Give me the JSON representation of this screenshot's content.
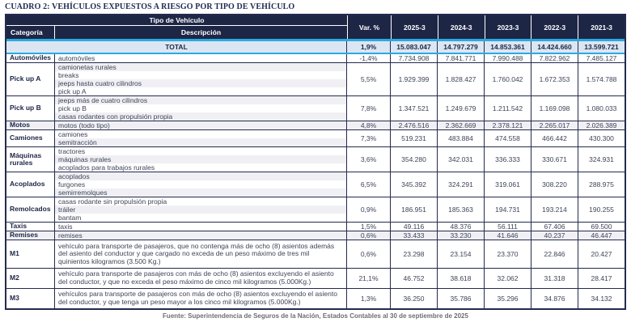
{
  "title": "CUADRO 2: VEHÍCULOS EXPUESTOS A RIESGO POR TIPO DE VEHÍCULO",
  "footer": "Fuente: Superintendencia de Seguros de la Nación, Estados Contables al 30 de septiembre de 2025",
  "colors": {
    "header_bg": "#1e2646",
    "border_navy": "#232b4d",
    "accent_cyan": "#29abe2",
    "total_row_bg": "#dce6f2",
    "stripe_gray": "#f0f0f4",
    "body_text": "#3f4457",
    "title_text": "#1e2a52",
    "footer_text": "#6d6e71"
  },
  "table": {
    "group_header": "Tipo de Vehículo",
    "col_headers": [
      "Categoría",
      "Descripción",
      "Var. %",
      "2025-3",
      "2024-3",
      "2023-3",
      "2022-3",
      "2021-3"
    ],
    "total_row": {
      "label": "TOTAL",
      "var_pct": "1,9%",
      "values": [
        "15.083.047",
        "14.797.279",
        "14.853.361",
        "14.424.660",
        "13.599.721"
      ]
    },
    "rows": [
      {
        "category": "Automóviles",
        "descriptions": [
          {
            "text": "automóviles",
            "shade": false
          }
        ],
        "var_pct": "-1,4%",
        "values": [
          "7.734.908",
          "7.841.771",
          "7.990.488",
          "7.822.962",
          "7.485.127"
        ],
        "shade_row": false
      },
      {
        "category": "Pick up A",
        "descriptions": [
          {
            "text": "camionetas rurales",
            "shade": true
          },
          {
            "text": "breaks",
            "shade": false
          },
          {
            "text": "jeeps hasta cuatro cilindros",
            "shade": true
          },
          {
            "text": "pick up A",
            "shade": false
          }
        ],
        "var_pct": "5,5%",
        "values": [
          "1.929.399",
          "1.828.427",
          "1.760.042",
          "1.672.353",
          "1.574.788"
        ],
        "shade_row": false
      },
      {
        "category": "Pick up B",
        "descriptions": [
          {
            "text": "jeeps más de cuatro cilindros",
            "shade": true
          },
          {
            "text": "pick up B",
            "shade": false
          },
          {
            "text": "casas rodantes con propulsión propia",
            "shade": true
          }
        ],
        "var_pct": "7,8%",
        "values": [
          "1.347.521",
          "1.249.679",
          "1.211.542",
          "1.169.098",
          "1.080.033"
        ],
        "shade_row": false
      },
      {
        "category": "Motos",
        "descriptions": [
          {
            "text": "motos (todo tipo)",
            "shade": true
          }
        ],
        "var_pct": "4,8%",
        "values": [
          "2.476.516",
          "2.362.669",
          "2.378.121",
          "2.265.017",
          "2.026.389"
        ],
        "shade_row": true
      },
      {
        "category": "Camiones",
        "descriptions": [
          {
            "text": "camiones",
            "shade": false
          },
          {
            "text": "semitracción",
            "shade": true
          }
        ],
        "var_pct": "7,3%",
        "values": [
          "519.231",
          "483.884",
          "474.558",
          "466.442",
          "430.300"
        ],
        "shade_row": false
      },
      {
        "category": "Máquinas rurales",
        "descriptions": [
          {
            "text": "tractores",
            "shade": false
          },
          {
            "text": "máquinas rurales",
            "shade": true
          },
          {
            "text": "acoplados para trabajos rurales",
            "shade": false
          }
        ],
        "var_pct": "3,6%",
        "values": [
          "354.280",
          "342.031",
          "336.333",
          "330.671",
          "324.931"
        ],
        "shade_row": false
      },
      {
        "category": "Acoplados",
        "descriptions": [
          {
            "text": "acoplados",
            "shade": true
          },
          {
            "text": "furgones",
            "shade": false
          },
          {
            "text": "semirremolques",
            "shade": true
          }
        ],
        "var_pct": "6,5%",
        "values": [
          "345.392",
          "324.291",
          "319.061",
          "308.220",
          "288.975"
        ],
        "shade_row": false
      },
      {
        "category": "Remolcados",
        "descriptions": [
          {
            "text": "casas rodante sin propulsión propia",
            "shade": false
          },
          {
            "text": "tráiler",
            "shade": true
          },
          {
            "text": "bantam",
            "shade": false
          }
        ],
        "var_pct": "0,9%",
        "values": [
          "186.951",
          "185.363",
          "194.731",
          "193.214",
          "190.255"
        ],
        "shade_row": false
      },
      {
        "category": "Taxis",
        "descriptions": [
          {
            "text": "taxis",
            "shade": false
          }
        ],
        "var_pct": "1,5%",
        "values": [
          "49.116",
          "48.376",
          "56.111",
          "67.406",
          "69.500"
        ],
        "shade_row": false
      },
      {
        "category": "Remises",
        "descriptions": [
          {
            "text": "remises",
            "shade": true
          }
        ],
        "var_pct": "0,6%",
        "values": [
          "33.433",
          "33.230",
          "41.646",
          "40.237",
          "46.447"
        ],
        "shade_row": true
      },
      {
        "category": "M1",
        "descriptions": [
          {
            "text": "vehículo para transporte de pasajeros, que no contenga más de ocho (8) asientos además del asiento del conductor y que cargado no exceda de un peso máximo de tres mil quinientos kilogramos (3.500 Kg.)",
            "shade": false,
            "wrap": true
          }
        ],
        "var_pct": "0,6%",
        "values": [
          "23.298",
          "23.154",
          "23.370",
          "22.846",
          "20.427"
        ],
        "shade_row": false
      },
      {
        "category": "M2",
        "descriptions": [
          {
            "text": "vehículo para transporte de pasajeros con más de ocho (8) asientos excluyendo el asiento del conductor, y que no exceda el peso máximo de cinco mil kilogramos (5.000Kg.)",
            "shade": false,
            "wrap": true
          }
        ],
        "var_pct": "21,1%",
        "values": [
          "46.752",
          "38.618",
          "32.062",
          "31.318",
          "28.417"
        ],
        "shade_row": false
      },
      {
        "category": "M3",
        "descriptions": [
          {
            "text": "vehículos para transporte de pasajeros con más de ocho (8) asientos excluyendo el asiento del conductor, y que tenga un peso mayor a los cinco mil kilogramos (5.000Kg.)",
            "shade": false,
            "wrap": true
          }
        ],
        "var_pct": "1,3%",
        "values": [
          "36.250",
          "35.786",
          "35.296",
          "34.876",
          "34.132"
        ],
        "shade_row": false
      }
    ]
  }
}
